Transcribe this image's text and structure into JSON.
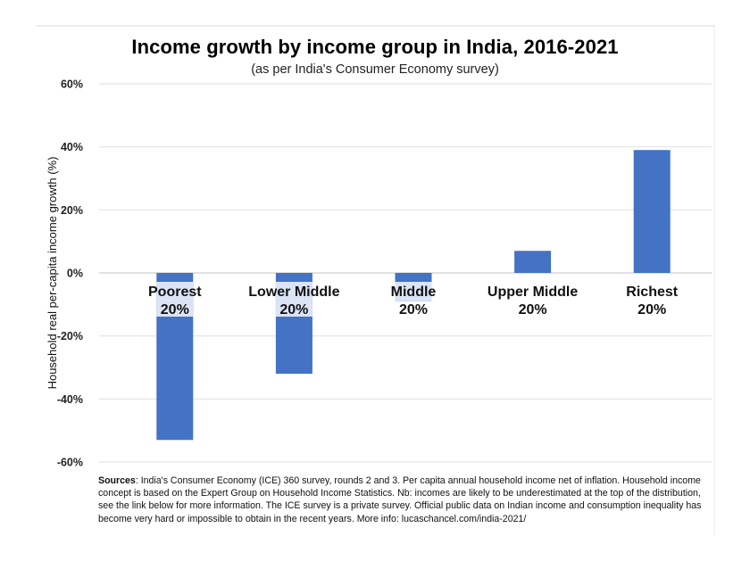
{
  "chart_data": {
    "type": "bar",
    "title": "Income growth by income group in India, 2016-2021",
    "subtitle": "(as per India's Consumer Economy survey)",
    "xlabel": "",
    "ylabel": "Household real per-capita income growth (%)",
    "categories": [
      {
        "line1": "Poorest",
        "line2": "20%"
      },
      {
        "line1": "Lower Middle",
        "line2": "20%"
      },
      {
        "line1": "Middle",
        "line2": "20%"
      },
      {
        "line1": "Upper Middle",
        "line2": "20%"
      },
      {
        "line1": "Richest",
        "line2": "20%"
      }
    ],
    "values": [
      -53,
      -32,
      -9,
      7,
      39
    ],
    "ylim": [
      -60,
      60
    ],
    "yticks": [
      60,
      40,
      20,
      0,
      -20,
      -40,
      -60
    ],
    "ytick_labels": [
      "60%",
      "40%",
      "20%",
      "0%",
      "-20%",
      "-40%",
      "-60%"
    ],
    "grid": true,
    "bar_color": "#4472c4",
    "legend": "none"
  },
  "sources": {
    "label": "Sources",
    "text": ": India's Consumer Economy (ICE) 360 survey, rounds 2 and 3. Per capita annual household income net of inflation. Household income concept is based on the Expert Group on Household Income Statistics. Nb: incomes are likely to be underestimated at the top of the distribution, see the link below for more information. The ICE survey is a private survey. Official public data on Indian income and consumption inequality has become very hard or impossible to obtain in the recent years. More info: lucaschancel.com/india-2021/"
  }
}
